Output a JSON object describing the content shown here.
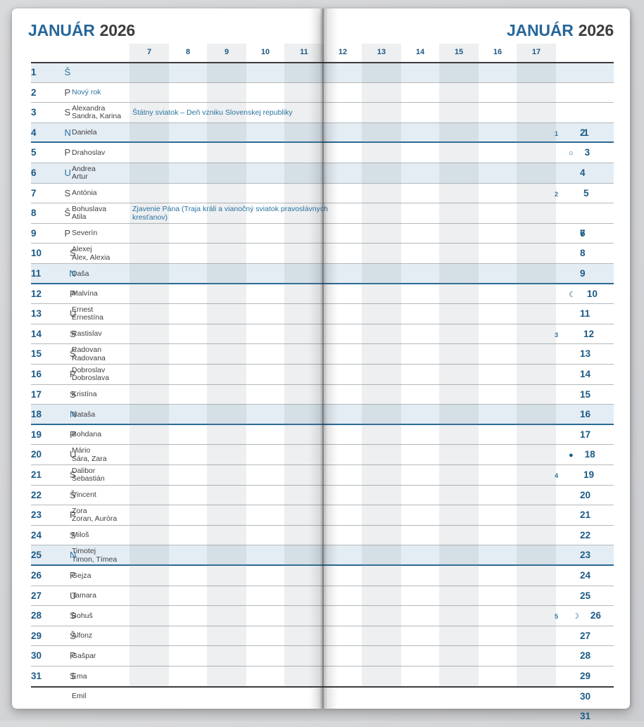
{
  "header": {
    "month": "JANUÁR",
    "year": "2026"
  },
  "hours": [
    "7",
    "8",
    "9",
    "10",
    "11",
    "12",
    "13",
    "14",
    "15",
    "16",
    "17"
  ],
  "colors": {
    "accent_blue": "#2a73a2",
    "day_number_navy": "#1b5a87",
    "row_highlight": "#e4edf4",
    "sunday_rule": "#2b6a94",
    "table_rule": "#3c3c3e"
  },
  "days": [
    {
      "day": "1",
      "letter": "Š",
      "names": [
        "Nový rok"
      ],
      "holiday": "Štátny sviatok – Deň vzniku Slovenskej republiky",
      "highlight": true,
      "sunday": false,
      "week": "1",
      "moon": "",
      "moon_name": "",
      "name_blue": true
    },
    {
      "day": "2",
      "letter": "P",
      "names": [
        "Alexandra",
        "Sandra, Karina"
      ],
      "highlight": false,
      "sunday": false,
      "week": "",
      "moon": "",
      "moon_name": ""
    },
    {
      "day": "3",
      "letter": "S",
      "names": [
        "Daniela"
      ],
      "highlight": false,
      "sunday": false,
      "week": "",
      "moon": "○",
      "moon_name": "full-moon-icon"
    },
    {
      "day": "4",
      "letter": "N",
      "names": [
        "Drahoslav"
      ],
      "highlight": true,
      "sunday": true,
      "week": "",
      "moon": "",
      "moon_name": ""
    },
    {
      "day": "5",
      "letter": "P",
      "names": [
        "Andrea",
        "Artur"
      ],
      "highlight": false,
      "sunday": false,
      "week": "2",
      "moon": "",
      "moon_name": ""
    },
    {
      "day": "6",
      "letter": "U",
      "names": [
        "Antónia"
      ],
      "holiday": "Zjavenie Pána (Traja králi a vianočný sviatok pravoslávnych kresťanov)",
      "highlight": true,
      "sunday": false,
      "week": "",
      "moon": "",
      "moon_name": ""
    },
    {
      "day": "7",
      "letter": "S",
      "names": [
        "Bohuslava",
        "Atila"
      ],
      "highlight": false,
      "sunday": false,
      "week": "",
      "moon": "",
      "moon_name": ""
    },
    {
      "day": "8",
      "letter": "Š",
      "names": [
        "Severín"
      ],
      "highlight": false,
      "sunday": false,
      "week": "",
      "moon": "",
      "moon_name": ""
    },
    {
      "day": "9",
      "letter": "P",
      "names": [
        "Alexej",
        "Alex, Alexia"
      ],
      "highlight": false,
      "sunday": false,
      "week": "",
      "moon": "",
      "moon_name": ""
    },
    {
      "day": "10",
      "letter": "S",
      "names": [
        "Daša"
      ],
      "highlight": false,
      "sunday": false,
      "week": "",
      "moon": "☾",
      "moon_name": "last-quarter-moon-icon"
    },
    {
      "day": "11",
      "letter": "N",
      "names": [
        "Malvína"
      ],
      "highlight": true,
      "sunday": true,
      "week": "",
      "moon": "",
      "moon_name": ""
    },
    {
      "day": "12",
      "letter": "P",
      "names": [
        "Ernest",
        "Ernestína"
      ],
      "highlight": false,
      "sunday": false,
      "week": "3",
      "moon": "",
      "moon_name": ""
    },
    {
      "day": "13",
      "letter": "U",
      "names": [
        "Rastislav"
      ],
      "highlight": false,
      "sunday": false,
      "week": "",
      "moon": "",
      "moon_name": ""
    },
    {
      "day": "14",
      "letter": "S",
      "names": [
        "Radovan",
        "Radovana"
      ],
      "highlight": false,
      "sunday": false,
      "week": "",
      "moon": "",
      "moon_name": ""
    },
    {
      "day": "15",
      "letter": "Š",
      "names": [
        "Dobroslav",
        "Dobroslava"
      ],
      "highlight": false,
      "sunday": false,
      "week": "",
      "moon": "",
      "moon_name": ""
    },
    {
      "day": "16",
      "letter": "P",
      "names": [
        "Kristína"
      ],
      "highlight": false,
      "sunday": false,
      "week": "",
      "moon": "",
      "moon_name": ""
    },
    {
      "day": "17",
      "letter": "S",
      "names": [
        "Nataša"
      ],
      "highlight": false,
      "sunday": false,
      "week": "",
      "moon": "",
      "moon_name": ""
    },
    {
      "day": "18",
      "letter": "N",
      "names": [
        "Bohdana"
      ],
      "highlight": true,
      "sunday": true,
      "week": "",
      "moon": "●",
      "moon_name": "new-moon-icon"
    },
    {
      "day": "19",
      "letter": "P",
      "names": [
        "Mário",
        "Sára, Zara"
      ],
      "highlight": false,
      "sunday": false,
      "week": "4",
      "moon": "",
      "moon_name": ""
    },
    {
      "day": "20",
      "letter": "U",
      "names": [
        "Dalibor",
        "Sebastián"
      ],
      "highlight": false,
      "sunday": false,
      "week": "",
      "moon": "",
      "moon_name": ""
    },
    {
      "day": "21",
      "letter": "S",
      "names": [
        "Vincent"
      ],
      "highlight": false,
      "sunday": false,
      "week": "",
      "moon": "",
      "moon_name": ""
    },
    {
      "day": "22",
      "letter": "Š",
      "names": [
        "Zora",
        "Zoran, Auróra"
      ],
      "highlight": false,
      "sunday": false,
      "week": "",
      "moon": "",
      "moon_name": ""
    },
    {
      "day": "23",
      "letter": "P",
      "names": [
        "Miloš"
      ],
      "highlight": false,
      "sunday": false,
      "week": "",
      "moon": "",
      "moon_name": ""
    },
    {
      "day": "24",
      "letter": "S",
      "names": [
        "Timotej",
        "Timon, Tímea"
      ],
      "highlight": false,
      "sunday": false,
      "week": "",
      "moon": "",
      "moon_name": ""
    },
    {
      "day": "25",
      "letter": "N",
      "names": [
        "Gejza"
      ],
      "highlight": true,
      "sunday": true,
      "week": "",
      "moon": "",
      "moon_name": ""
    },
    {
      "day": "26",
      "letter": "P",
      "names": [
        "Tamara"
      ],
      "highlight": false,
      "sunday": false,
      "week": "5",
      "moon": "☽",
      "moon_name": "first-quarter-moon-icon"
    },
    {
      "day": "27",
      "letter": "U",
      "names": [
        "Bohuš"
      ],
      "highlight": false,
      "sunday": false,
      "week": "",
      "moon": "",
      "moon_name": ""
    },
    {
      "day": "28",
      "letter": "S",
      "names": [
        "Alfonz"
      ],
      "highlight": false,
      "sunday": false,
      "week": "",
      "moon": "",
      "moon_name": ""
    },
    {
      "day": "29",
      "letter": "Š",
      "names": [
        "Gašpar"
      ],
      "highlight": false,
      "sunday": false,
      "week": "",
      "moon": "",
      "moon_name": ""
    },
    {
      "day": "30",
      "letter": "P",
      "names": [
        "Ema"
      ],
      "highlight": false,
      "sunday": false,
      "week": "",
      "moon": "",
      "moon_name": ""
    },
    {
      "day": "31",
      "letter": "S",
      "names": [
        "Emil"
      ],
      "highlight": false,
      "sunday": false,
      "week": "",
      "moon": "",
      "moon_name": ""
    }
  ]
}
